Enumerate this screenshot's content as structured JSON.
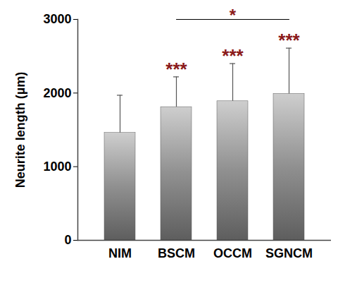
{
  "chart_data": {
    "type": "bar",
    "categories": [
      "NIM",
      "BSCM",
      "OCCM",
      "SGNCM"
    ],
    "values": [
      1460,
      1810,
      1890,
      1990
    ],
    "errors": [
      510,
      410,
      510,
      620
    ],
    "color": "#909090",
    "ylabel": "Neurite length (µm)",
    "ylim": [
      0,
      3000
    ],
    "yticks": [
      0,
      1000,
      2000,
      3000
    ],
    "grid": false,
    "annotations": [
      {
        "text": "***",
        "category": "BSCM",
        "color": "#8b1a1a"
      },
      {
        "text": "***",
        "category": "OCCM",
        "color": "#8b1a1a"
      },
      {
        "text": "***",
        "category": "SGNCM",
        "color": "#8b1a1a"
      }
    ],
    "brackets": [
      {
        "from": "BSCM",
        "to": "SGNCM",
        "text": "*",
        "color": "#000000"
      }
    ]
  }
}
